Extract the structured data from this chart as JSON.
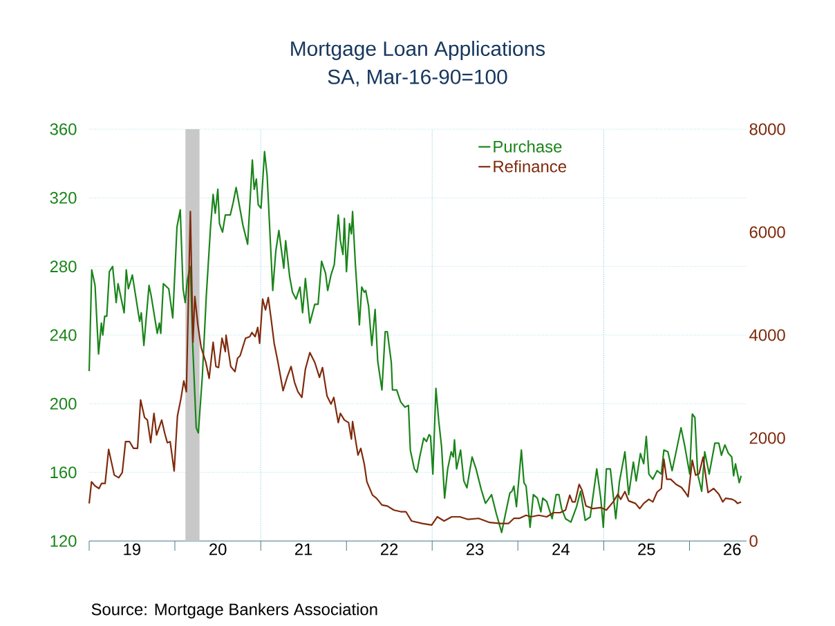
{
  "chart_data": {
    "type": "line",
    "title": "Mortgage Loan Applications",
    "subtitle": "SA, Mar-16-90=100",
    "annotations": [
      "Source:  Mortgage Bankers Association"
    ],
    "series": [
      {
        "name": "Purchase",
        "color": "#1a841a",
        "axis": "y",
        "x": [
          "2019-01-01",
          "2019-01-12",
          "2019-01-26",
          "2019-02-10",
          "2019-02-22",
          "2019-02-28",
          "2019-03-08",
          "2019-03-17",
          "2019-03-28",
          "2019-04-11",
          "2019-04-26",
          "2019-05-04",
          "2019-05-30",
          "2019-06-08",
          "2019-06-17",
          "2019-07-04",
          "2019-08-04",
          "2019-08-11",
          "2019-08-22",
          "2019-09-13",
          "2019-09-22",
          "2019-10-18",
          "2019-10-27",
          "2019-11-02",
          "2019-11-13",
          "2019-12-06",
          "2019-12-23",
          "2020-01-10",
          "2020-01-24",
          "2020-02-05",
          "2020-02-14",
          "2020-02-23",
          "2020-03-07",
          "2020-03-18",
          "2020-04-01",
          "2020-04-10",
          "2020-04-27",
          "2020-05-14",
          "2020-06-01",
          "2020-06-12",
          "2020-06-21",
          "2020-07-02",
          "2020-07-09",
          "2020-07-22",
          "2020-08-03",
          "2020-08-24",
          "2020-09-05",
          "2020-09-18",
          "2020-10-17",
          "2020-11-06",
          "2020-11-26",
          "2020-12-04",
          "2020-12-13",
          "2020-12-21",
          "2021-01-02",
          "2021-01-17",
          "2021-01-28",
          "2021-02-21",
          "2021-03-06",
          "2021-03-19",
          "2021-04-09",
          "2021-04-17",
          "2021-05-04",
          "2021-05-16",
          "2021-05-31",
          "2021-06-17",
          "2021-06-28",
          "2021-07-10",
          "2021-07-29",
          "2021-08-19",
          "2021-09-02",
          "2021-09-17",
          "2021-10-04",
          "2021-10-13",
          "2021-10-27",
          "2021-11-10",
          "2021-11-27",
          "2021-12-06",
          "2021-12-17",
          "2021-12-23",
          "2022-01-01",
          "2022-01-14",
          "2022-01-22",
          "2022-01-27",
          "2022-02-08",
          "2022-02-25",
          "2022-03-07",
          "2022-03-18",
          "2022-03-24",
          "2022-04-05",
          "2022-04-19",
          "2022-05-03",
          "2022-05-14",
          "2022-06-01",
          "2022-06-15",
          "2022-06-24",
          "2022-07-11",
          "2022-07-16",
          "2022-08-03",
          "2022-08-20",
          "2022-09-07",
          "2022-09-22",
          "2022-09-30",
          "2022-10-17",
          "2022-10-28",
          "2022-11-09",
          "2022-11-26",
          "2022-12-08",
          "2022-12-19",
          "2022-12-25",
          "2023-01-04",
          "2023-01-17",
          "2023-01-29",
          "2023-02-10",
          "2023-02-23",
          "2023-03-08",
          "2023-03-23",
          "2023-04-01",
          "2023-04-06",
          "2023-04-15",
          "2023-05-02",
          "2023-05-16",
          "2023-05-29",
          "2023-06-20",
          "2023-07-07",
          "2023-07-29",
          "2023-08-16",
          "2023-08-27",
          "2023-09-11",
          "2023-10-01",
          "2023-10-24",
          "2023-11-11",
          "2023-11-28",
          "2023-12-07",
          "2023-12-15",
          "2023-12-26",
          "2024-01-16",
          "2024-01-27",
          "2024-02-05",
          "2024-02-22",
          "2024-03-07",
          "2024-03-24",
          "2024-04-08",
          "2024-04-16",
          "2024-05-03",
          "2024-05-26",
          "2024-06-12",
          "2024-06-24",
          "2024-07-05",
          "2024-07-22",
          "2024-08-14",
          "2024-09-07",
          "2024-09-24",
          "2024-10-14",
          "2024-11-04",
          "2024-12-02",
          "2024-12-19",
          "2024-12-30",
          "2025-01-12",
          "2025-01-29",
          "2025-02-21",
          "2025-03-08",
          "2025-04-01",
          "2025-04-17",
          "2025-05-07",
          "2025-05-19",
          "2025-06-06",
          "2025-06-20",
          "2025-07-01",
          "2025-07-12",
          "2025-07-29",
          "2025-08-16",
          "2025-09-03",
          "2025-09-14",
          "2025-10-01",
          "2025-10-19",
          "2025-11-05",
          "2025-11-26",
          "2025-12-11",
          "2026-01-02",
          "2026-01-13",
          "2026-01-24",
          "2026-02-05",
          "2026-02-22",
          "2026-03-07",
          "2026-03-26",
          "2026-04-19",
          "2026-05-06",
          "2026-05-17",
          "2026-06-01",
          "2026-06-16",
          "2026-06-30",
          "2026-07-08",
          "2026-07-16",
          "2026-08-01",
          "2026-08-09"
        ],
        "values": [
          219,
          278,
          269,
          229,
          247,
          240,
          251,
          251,
          277,
          280,
          259,
          270,
          253,
          278,
          267,
          275,
          248,
          253,
          234,
          269,
          263,
          241,
          247,
          241,
          270,
          267,
          250,
          303,
          313,
          267,
          259,
          272,
          280,
          231,
          186,
          183,
          216,
          263,
          303,
          322,
          311,
          325,
          305,
          300,
          310,
          310,
          317,
          326,
          304,
          293,
          342,
          325,
          331,
          316,
          314,
          347,
          333,
          266,
          289,
          301,
          279,
          295,
          274,
          265,
          261,
          268,
          253,
          273,
          247,
          258,
          258,
          283,
          276,
          266,
          275,
          281,
          310,
          295,
          287,
          308,
          277,
          305,
          299,
          312,
          281,
          246,
          268,
          265,
          266,
          257,
          234,
          255,
          225,
          208,
          242,
          242,
          224,
          208,
          208,
          201,
          198,
          199,
          173,
          162,
          160,
          169,
          180,
          178,
          182,
          181,
          159,
          209,
          190,
          175,
          145,
          162,
          172,
          169,
          179,
          162,
          173,
          155,
          151,
          169,
          162,
          150,
          142,
          144,
          147,
          136,
          125,
          137,
          148,
          149,
          152,
          140,
          173,
          154,
          152,
          128,
          147,
          145,
          137,
          145,
          143,
          133,
          147,
          147,
          139,
          133,
          131,
          140,
          149,
          132,
          134,
          162,
          145,
          128,
          162,
          162,
          133,
          154,
          172,
          147,
          166,
          155,
          171,
          165,
          181,
          159,
          156,
          161,
          159,
          173,
          172,
          161,
          172,
          186,
          176,
          159,
          194,
          192,
          159,
          149,
          172,
          159,
          177,
          177,
          170,
          176,
          171,
          169,
          158,
          165,
          154,
          158
        ]
      },
      {
        "name": "Refinance",
        "color": "#7f2a0c",
        "axis": "y2",
        "x": [
          "2019-01-01",
          "2019-01-11",
          "2019-01-26",
          "2019-02-12",
          "2019-02-23",
          "2019-03-10",
          "2019-03-25",
          "2019-04-18",
          "2019-05-07",
          "2019-05-22",
          "2019-06-05",
          "2019-06-22",
          "2019-07-09",
          "2019-07-26",
          "2019-08-08",
          "2019-08-25",
          "2019-09-06",
          "2019-09-20",
          "2019-10-04",
          "2019-10-15",
          "2019-11-06",
          "2019-11-19",
          "2019-11-30",
          "2019-12-12",
          "2019-12-29",
          "2020-01-12",
          "2020-01-27",
          "2020-02-08",
          "2020-02-19",
          "2020-03-07",
          "2020-03-18",
          "2020-03-26",
          "2020-04-08",
          "2020-04-22",
          "2020-05-12",
          "2020-05-26",
          "2020-06-12",
          "2020-06-24",
          "2020-07-05",
          "2020-07-20",
          "2020-08-03",
          "2020-08-06",
          "2020-08-26",
          "2020-09-13",
          "2020-09-24",
          "2020-10-05",
          "2020-10-28",
          "2020-11-15",
          "2020-11-24",
          "2020-12-08",
          "2020-12-19",
          "2020-12-27",
          "2021-01-09",
          "2021-01-21",
          "2021-02-02",
          "2021-02-15",
          "2021-02-27",
          "2021-03-14",
          "2021-04-06",
          "2021-04-23",
          "2021-05-10",
          "2021-05-25",
          "2021-06-08",
          "2021-06-25",
          "2021-07-10",
          "2021-07-29",
          "2021-08-19",
          "2021-09-08",
          "2021-09-21",
          "2021-10-10",
          "2021-10-27",
          "2021-11-08",
          "2021-11-27",
          "2021-12-06",
          "2021-12-23",
          "2022-01-10",
          "2022-01-22",
          "2022-01-27",
          "2022-02-19",
          "2022-03-03",
          "2022-03-18",
          "2022-03-29",
          "2022-04-22",
          "2022-05-09",
          "2022-06-01",
          "2022-06-24",
          "2022-07-22",
          "2022-08-20",
          "2022-09-11",
          "2022-10-05",
          "2022-11-20",
          "2022-12-30",
          "2023-01-23",
          "2023-02-21",
          "2023-03-25",
          "2023-04-29",
          "2023-06-03",
          "2023-07-18",
          "2023-09-03",
          "2023-10-19",
          "2023-11-22",
          "2023-12-15",
          "2024-01-07",
          "2024-02-05",
          "2024-02-26",
          "2024-03-30",
          "2024-05-03",
          "2024-06-01",
          "2024-06-29",
          "2024-07-22",
          "2024-08-09",
          "2024-08-20",
          "2024-09-01",
          "2024-09-18",
          "2024-09-30",
          "2024-10-17",
          "2024-11-15",
          "2024-12-19",
          "2025-01-12",
          "2025-02-10",
          "2025-03-02",
          "2025-03-14",
          "2025-04-01",
          "2025-04-17",
          "2025-05-16",
          "2025-06-03",
          "2025-06-20",
          "2025-07-12",
          "2025-07-29",
          "2025-08-16",
          "2025-09-03",
          "2025-09-14",
          "2025-09-26",
          "2025-10-13",
          "2025-11-05",
          "2025-11-28",
          "2025-12-15",
          "2025-12-26",
          "2026-01-13",
          "2026-01-27",
          "2026-02-11",
          "2026-02-28",
          "2026-03-21",
          "2026-04-14",
          "2026-05-06",
          "2026-05-23",
          "2026-06-04",
          "2026-07-02",
          "2026-07-14",
          "2026-07-25",
          "2026-08-09"
        ],
        "values": [
          730,
          1150,
          1070,
          1020,
          1120,
          1120,
          1780,
          1280,
          1230,
          1330,
          1930,
          1930,
          1800,
          1800,
          2740,
          2400,
          2350,
          1910,
          2480,
          2060,
          2350,
          2090,
          1910,
          1930,
          1360,
          2430,
          2770,
          3110,
          2900,
          6400,
          3860,
          4750,
          4200,
          3760,
          3470,
          3160,
          3860,
          3390,
          3370,
          3940,
          3680,
          4000,
          3390,
          3290,
          3550,
          3600,
          3940,
          3970,
          4050,
          3970,
          4150,
          3840,
          4700,
          4490,
          4730,
          4280,
          3840,
          3500,
          2920,
          3180,
          3390,
          3080,
          2900,
          2790,
          3340,
          3660,
          3470,
          3180,
          3370,
          2820,
          2660,
          2790,
          2300,
          2480,
          2350,
          2300,
          1980,
          2320,
          1670,
          1800,
          1490,
          1150,
          890,
          830,
          700,
          680,
          600,
          570,
          570,
          390,
          340,
          310,
          470,
          390,
          470,
          470,
          420,
          440,
          360,
          340,
          340,
          440,
          440,
          500,
          470,
          500,
          470,
          550,
          550,
          600,
          890,
          760,
          760,
          1100,
          990,
          680,
          630,
          650,
          600,
          760,
          910,
          810,
          960,
          780,
          730,
          630,
          730,
          810,
          760,
          950,
          1020,
          1590,
          1200,
          1200,
          1100,
          1040,
          940,
          860,
          1570,
          1280,
          1310,
          1630,
          940,
          1020,
          910,
          760,
          830,
          810,
          780,
          730,
          760
        ]
      }
    ],
    "xlim": [
      "2019-01-01",
      "2026-09-01"
    ],
    "xticks": [
      {
        "value": "2019-01-01",
        "label": null
      },
      {
        "value": "2020-01-01",
        "label": null
      },
      {
        "value": "2021-01-01",
        "label": null
      },
      {
        "value": "2022-01-01",
        "label": null
      },
      {
        "value": "2023-01-01",
        "label": null
      },
      {
        "value": "2024-01-01",
        "label": null
      },
      {
        "value": "2025-01-01",
        "label": null
      },
      {
        "value": "2026-01-01",
        "label": null
      },
      {
        "value": "2019-07-02",
        "label": "19"
      },
      {
        "value": "2020-07-02",
        "label": "20"
      },
      {
        "value": "2021-07-02",
        "label": "21"
      },
      {
        "value": "2022-07-02",
        "label": "22"
      },
      {
        "value": "2023-07-02",
        "label": "23"
      },
      {
        "value": "2024-07-02",
        "label": "24"
      },
      {
        "value": "2025-07-02",
        "label": "25"
      },
      {
        "value": "2026-07-02",
        "label": "26"
      }
    ],
    "ylim": [
      120,
      360
    ],
    "yticks": [
      120,
      160,
      200,
      240,
      280,
      320,
      360
    ],
    "y2lim": [
      0,
      8000
    ],
    "y2ticks": [
      0,
      2000,
      4000,
      6000,
      8000
    ],
    "bands": [
      {
        "axis": "x",
        "from": "2020-02-15",
        "to": "2020-04-15",
        "color": "#c8c8c8"
      }
    ],
    "ref_lines": [
      {
        "axis": "x",
        "value": "2021-01-01",
        "color": "#2aa6c6",
        "line_style": "dotted"
      },
      {
        "axis": "x",
        "value": "2023-01-01",
        "color": "#2aa6c6",
        "line_style": "dotted"
      },
      {
        "axis": "x",
        "value": "2025-01-01",
        "color": "#2aa6c6",
        "line_style": "dotted"
      }
    ],
    "grid": "y",
    "legend": "top",
    "marker": "none",
    "line_style": "solid"
  }
}
